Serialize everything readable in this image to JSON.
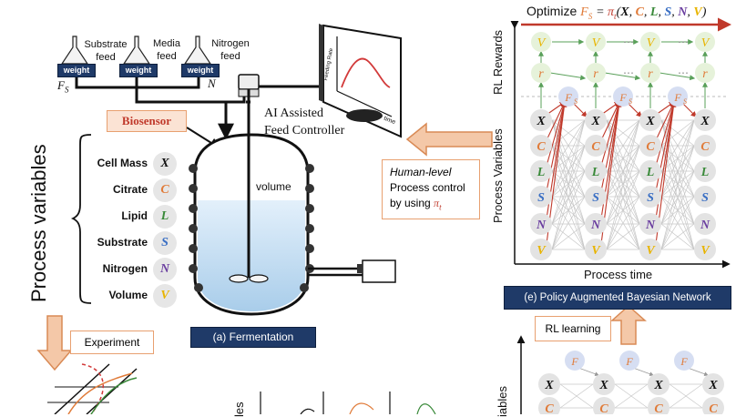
{
  "feeds": {
    "substrate": "Substrate feed",
    "media": "Media feed",
    "nitrogen": "Nitrogen feed",
    "weight_label": "weight",
    "fs_symbol": "F_S",
    "n_symbol": "N"
  },
  "biosensor": "Biosensor",
  "controller": {
    "line1": "AI Assisted",
    "line2": "Feed Controller"
  },
  "monitor": {
    "y_axis": "Feeding Rate",
    "x_axis": "time"
  },
  "reactor": {
    "volume_label": "volume",
    "caption": "(a) Fermentation"
  },
  "process_variables_title": "Process variables",
  "process_variables": [
    {
      "name": "Cell Mass",
      "symbol": "X",
      "color": "#111111"
    },
    {
      "name": "Citrate",
      "symbol": "C",
      "color": "#e07b39"
    },
    {
      "name": "Lipid",
      "symbol": "L",
      "color": "#3a8a3a"
    },
    {
      "name": "Substrate",
      "symbol": "S",
      "color": "#3a6fc4"
    },
    {
      "name": "Nitrogen",
      "symbol": "N",
      "color": "#6b3fa0"
    },
    {
      "name": "Volume",
      "symbol": "V",
      "color": "#e8b400"
    }
  ],
  "experiment_label": "Experiment",
  "human_box": {
    "line1": "Human-level",
    "line2": "Process control",
    "line3": "by using",
    "pi": "π_t"
  },
  "optimize": {
    "prefix": "Optimize",
    "fs": "F_S",
    "eq": "= π_t(X, C, L, S, N, V)"
  },
  "network": {
    "rl_rewards": "RL Rewards",
    "process_variables": "Process Variables",
    "process_time": "Process time",
    "caption": "(e) Policy Augmented Bayesian Network",
    "v_node": "V",
    "r_node": "r",
    "fs_node": "F_S",
    "ellipsis": "⋯"
  },
  "rl_learning": "RL learning",
  "bottom_left_axis": "les",
  "bottom_right_axis": "iables",
  "colors": {
    "arrow_fill": "#f4c8a8",
    "arrow_stroke": "#d98a55",
    "nav": "#1f3a68",
    "red": "#c0392b",
    "green": "#5aa05a",
    "node": "#e3e3e3",
    "reward_node": "#e6f2da",
    "fs_node": "#d6def2"
  }
}
